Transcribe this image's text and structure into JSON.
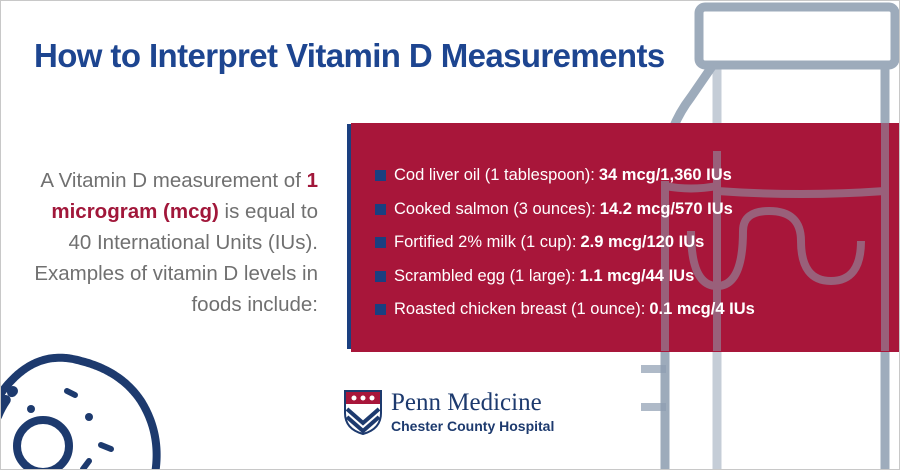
{
  "title": "How to Interpret Vitamin D Measurements",
  "intro": {
    "before": "A Vitamin D measurement of ",
    "highlight": "1 microgram (mcg)",
    "after": " is equal to 40 International Units (IUs). Examples of vitamin D levels in foods include:"
  },
  "foods": [
    {
      "label": "Cod liver oil (1 tablespoon):",
      "value": "34 mcg/1,360 IUs"
    },
    {
      "label": "Cooked salmon (3 ounces):",
      "value": "14.2 mcg/570 IUs"
    },
    {
      "label": "Fortified 2% milk (1 cup):",
      "value": "2.9 mcg/120 IUs"
    },
    {
      "label": "Scrambled egg (1 large):",
      "value": "1.1 mcg/44 IUs"
    },
    {
      "label": "Roasted chicken breast (1 ounce):",
      "value": "0.1 mcg/4 IUs"
    }
  ],
  "logo": {
    "name": "Penn Medicine",
    "subtitle": "Chester County Hospital"
  },
  "colors": {
    "title_blue": "#1d4590",
    "accent_red": "#a8163a",
    "navy": "#1a3f80",
    "body_gray": "#707070"
  }
}
